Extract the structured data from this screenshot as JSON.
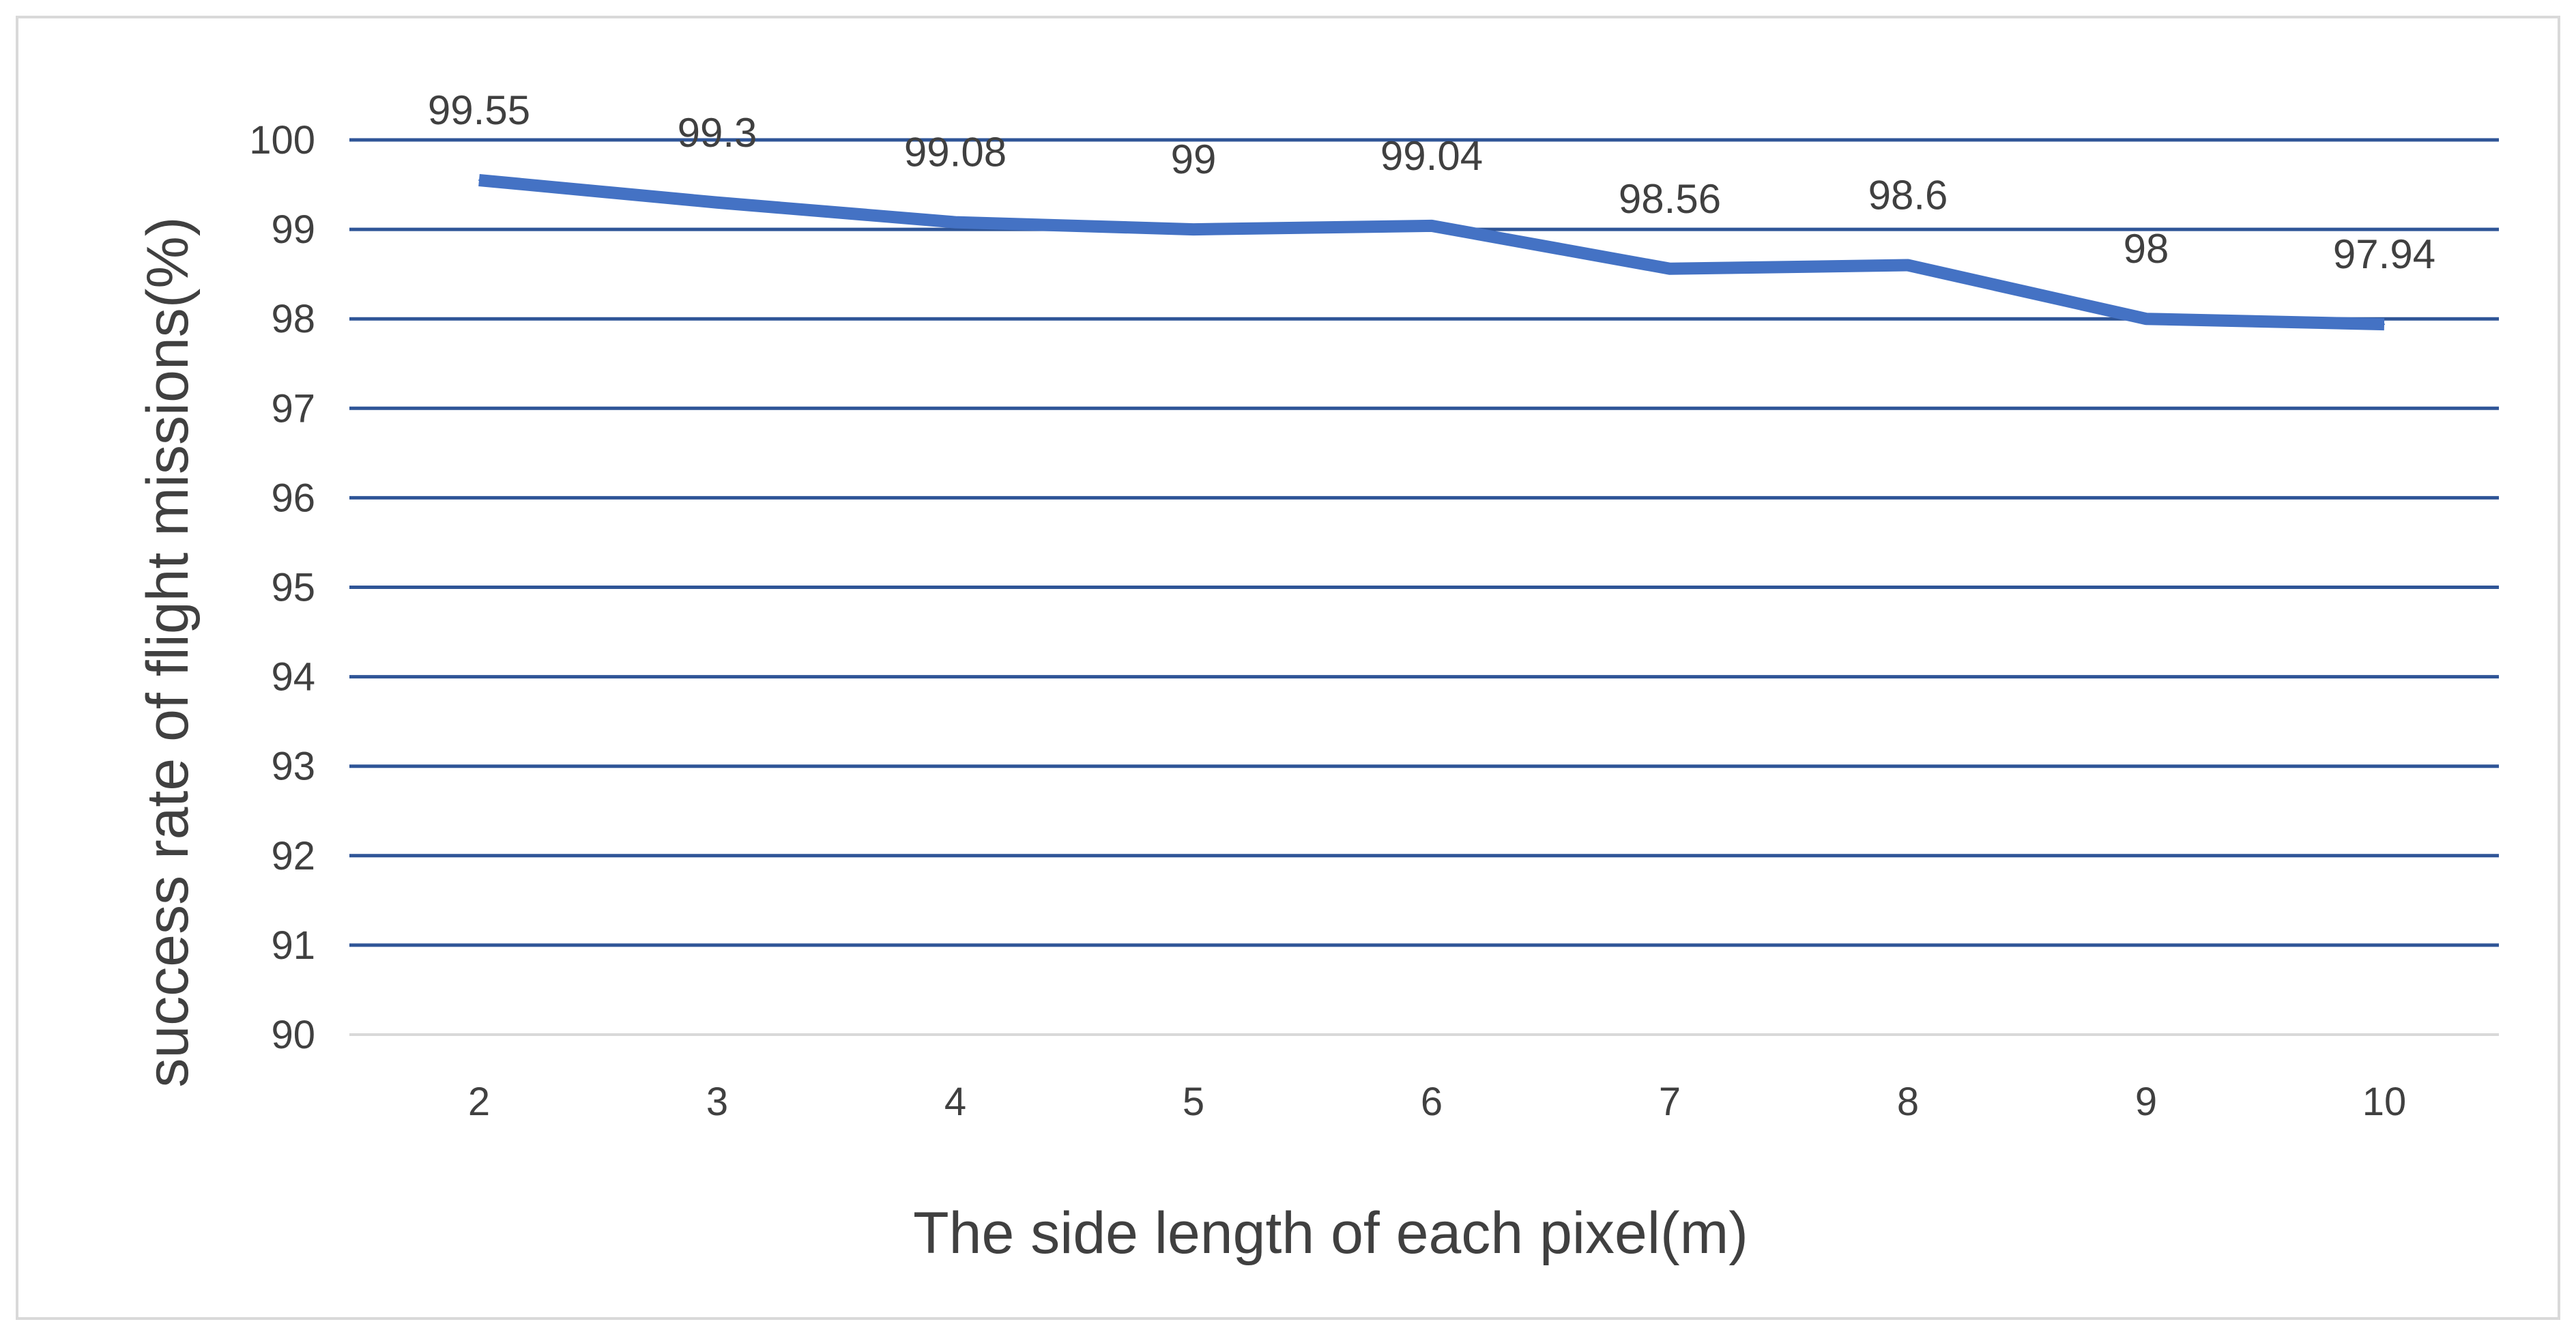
{
  "chart_data": {
    "type": "line",
    "title": "",
    "xlabel": "The side length of each pixel(m)",
    "ylabel": "success rate of flight missions(%)",
    "x": [
      2,
      3,
      4,
      5,
      6,
      7,
      8,
      9,
      10
    ],
    "x_tick_labels": [
      "2",
      "3",
      "4",
      "5",
      "6",
      "7",
      "8",
      "9",
      "10"
    ],
    "y_tick_labels": [
      "90",
      "91",
      "92",
      "93",
      "94",
      "95",
      "96",
      "97",
      "98",
      "99",
      "100"
    ],
    "ylim": [
      90,
      100
    ],
    "y_ticks": [
      90,
      91,
      92,
      93,
      94,
      95,
      96,
      97,
      98,
      99,
      100
    ],
    "grid": true,
    "legend": "none",
    "series": [
      {
        "values": [
          99.55,
          99.3,
          99.08,
          99,
          99.04,
          98.56,
          98.6,
          98,
          97.94
        ],
        "data_labels": [
          "99.55",
          "99.3",
          "99.08",
          "99",
          "99.04",
          "98.56",
          "98.6",
          "98",
          "97.94"
        ],
        "color": "#4472C4"
      }
    ],
    "colors": {
      "gridline": "#2F5597",
      "axis_line": "#D9D9D9",
      "text": "#404040",
      "frame": "#D9D9D9"
    }
  }
}
